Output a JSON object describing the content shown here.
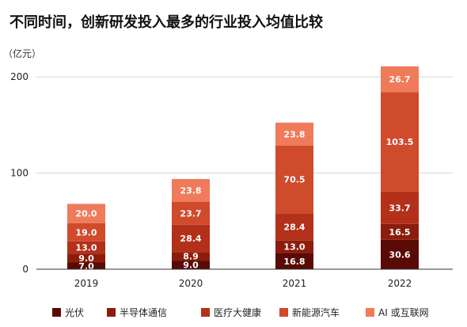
{
  "chart_data": {
    "type": "bar",
    "stacked": true,
    "title": "不同时间，创新研发投入最多的行业投入均值比较",
    "unit_label": "（亿元）",
    "categories": [
      "2019",
      "2020",
      "2021",
      "2022"
    ],
    "ylim": [
      0,
      210
    ],
    "yticks": [
      0,
      100,
      200
    ],
    "grid": true,
    "legend_position": "bottom",
    "series": [
      {
        "name": "光伏",
        "color": "#5a0a05",
        "values": [
          7.0,
          9.0,
          16.8,
          30.6
        ]
      },
      {
        "name": "半导体通信",
        "color": "#8c1d0c",
        "values": [
          9.0,
          8.9,
          13.0,
          16.5
        ]
      },
      {
        "name": "医疗大健康",
        "color": "#b3301a",
        "values": [
          13.0,
          28.4,
          28.4,
          33.7
        ]
      },
      {
        "name": "新能源汽车",
        "color": "#d04a2c",
        "values": [
          19.0,
          23.7,
          70.5,
          103.5
        ]
      },
      {
        "name": "AI 或互联网",
        "color": "#ef7b5a",
        "values": [
          20.0,
          23.8,
          23.8,
          26.7
        ]
      }
    ]
  }
}
